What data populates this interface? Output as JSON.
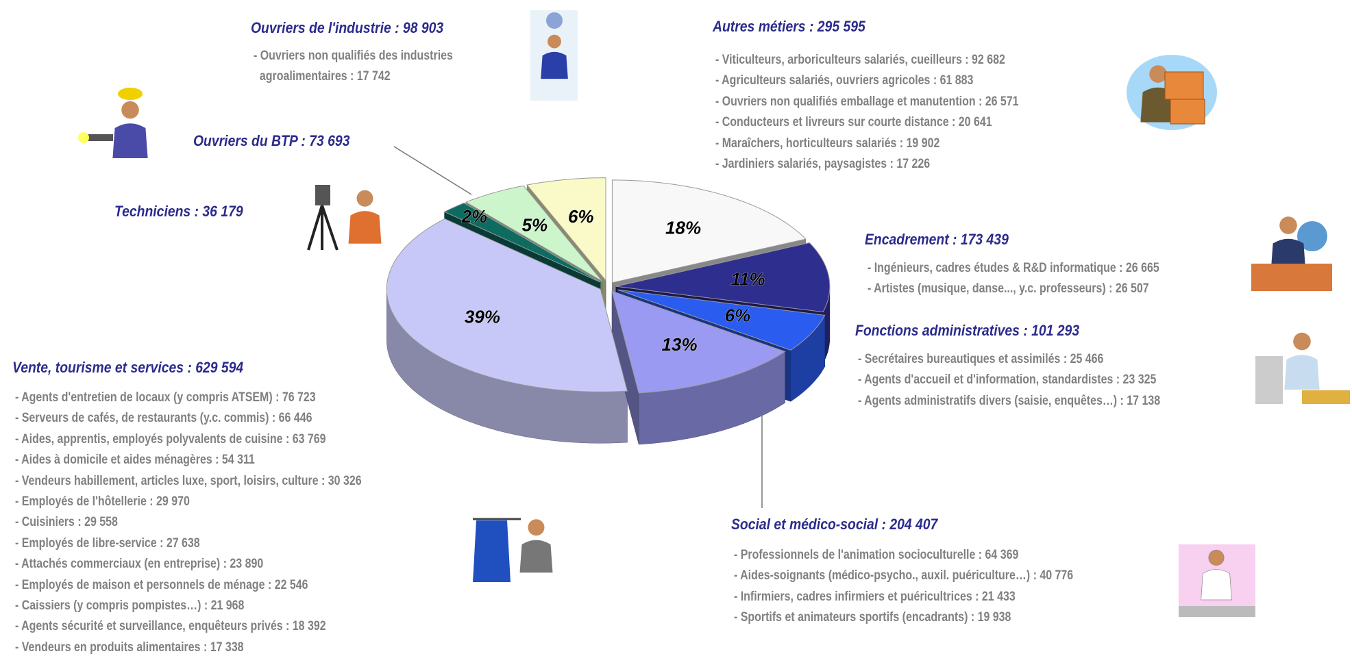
{
  "chart_data": {
    "type": "pie",
    "categories": [
      "Autres métiers : 295 595",
      "Encadrement : 173 439",
      "Fonctions administratives : 101 293",
      "Social et médico-social : 204 407",
      "Vente, tourisme et services : 629 594",
      "Techniciens : 36 179",
      "Ouvriers du BTP : 73 693",
      "Ouvriers de l'industrie : 98 903"
    ],
    "values": [
      18,
      11,
      6,
      13,
      39,
      2,
      5,
      6
    ],
    "value_labels": [
      "18%",
      "11%",
      "6%",
      "13%",
      "39%",
      "2%",
      "5%",
      "6%"
    ],
    "colors": [
      "#f8f8f8",
      "#2e2e8f",
      "#2b5cf0",
      "#9a9af2",
      "#c8c8f8",
      "#0e6b60",
      "#ccf5cc",
      "#fafac8"
    ],
    "details": [
      [
        "- Viticulteurs, arboriculteurs salariés, cueilleurs : 92 682",
        "- Agriculteurs salariés, ouvriers agricoles : 61 883",
        "- Ouvriers non qualifiés emballage et manutention : 26 571",
        "- Conducteurs et livreurs sur courte distance : 20 641",
        "- Maraîchers, horticulteurs salariés : 19 902",
        "- Jardiniers salariés, paysagistes : 17 226"
      ],
      [
        "- Ingénieurs, cadres études & R&D informatique : 26 665",
        "- Artistes (musique, danse..., y.c. professeurs) : 26 507"
      ],
      [
        "- Secrétaires bureautiques et assimilés : 25 466",
        "- Agents d'accueil et d'information, standardistes : 23 325",
        "- Agents administratifs divers (saisie, enquêtes…) : 17 138"
      ],
      [
        "- Professionnels de l'animation socioculturelle : 64 369",
        "- Aides-soignants (médico-psycho., auxil. puériculture…) : 40 776",
        "- Infirmiers, cadres infirmiers et puéricultrices : 21 433",
        "- Sportifs et animateurs sportifs (encadrants) : 19 938"
      ],
      [
        "- Agents d'entretien de locaux (y compris ATSEM) : 76 723",
        "- Serveurs de cafés, de restaurants (y.c. commis) : 66 446",
        "- Aides, apprentis, employés polyvalents de cuisine : 63 769",
        "- Aides à domicile et aides ménagères : 54 311",
        "- Vendeurs habillement, articles luxe, sport, loisirs, culture : 30 326",
        "- Employés de l'hôtellerie : 29 970",
        "- Cuisiniers : 29 558",
        "- Employés de libre-service : 27 638",
        "- Attachés commerciaux (en entreprise) : 23 890",
        "- Employés de maison et personnels de ménage : 22 546",
        "- Caissiers (y compris pompistes…) : 21 968",
        "- Agents sécurité et surveillance, enquêteurs privés : 18 392",
        "- Vendeurs en produits alimentaires : 17 338"
      ],
      [],
      [],
      [
        "- Ouvriers non qualifiés des industries\nagroalimentaires : 17 742"
      ]
    ]
  }
}
